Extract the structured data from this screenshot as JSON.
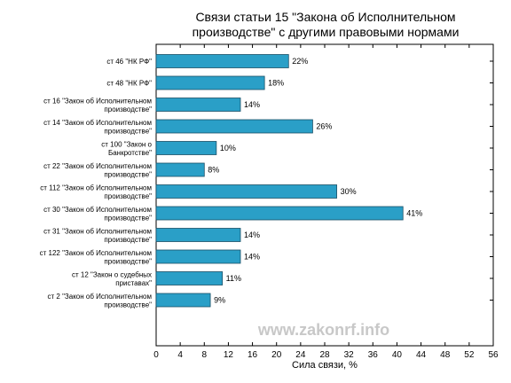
{
  "chart_data": {
    "type": "bar",
    "orientation": "horizontal",
    "title_lines": [
      "Связи статьи 15 \"Закона об Исполнительном",
      "производстве\" с другими правовыми нормами"
    ],
    "xlabel": "Сила связи, %",
    "ylabel": "",
    "xlim": [
      0,
      56
    ],
    "xticks": [
      0,
      4,
      8,
      12,
      16,
      20,
      24,
      28,
      32,
      36,
      40,
      44,
      48,
      52,
      56
    ],
    "grid": false,
    "categories": [
      [
        "ст 46 \"НК РФ\""
      ],
      [
        "ст 48 \"НК РФ\""
      ],
      [
        "ст 16 \"Закон об Исполнительном",
        "производстве\""
      ],
      [
        "ст 14 \"Закон об Исполнительном",
        "производстве\""
      ],
      [
        "ст 100 \"Закон о",
        "Банкротстве\""
      ],
      [
        "ст 22 \"Закон об Исполнительном",
        "производстве\""
      ],
      [
        "ст 112 \"Закон об Исполнительном",
        "производстве\""
      ],
      [
        "ст 30 \"Закон об Исполнительном",
        "производстве\""
      ],
      [
        "ст 31 \"Закон об Исполнительном",
        "производстве\""
      ],
      [
        "ст 122 \"Закон об Исполнительном",
        "производстве\""
      ],
      [
        "ст 12 \"Закон о судебных",
        "приставах\""
      ],
      [
        "ст 2 \"Закон об Исполнительном",
        "производстве\""
      ]
    ],
    "values": [
      22,
      18,
      14,
      26,
      10,
      8,
      30,
      41,
      14,
      14,
      11,
      9
    ],
    "value_suffix": "%",
    "bar_color": "#2a9fc7",
    "bar_edge_color": "#1a4f66"
  },
  "watermark": "www.zakonrf.info"
}
